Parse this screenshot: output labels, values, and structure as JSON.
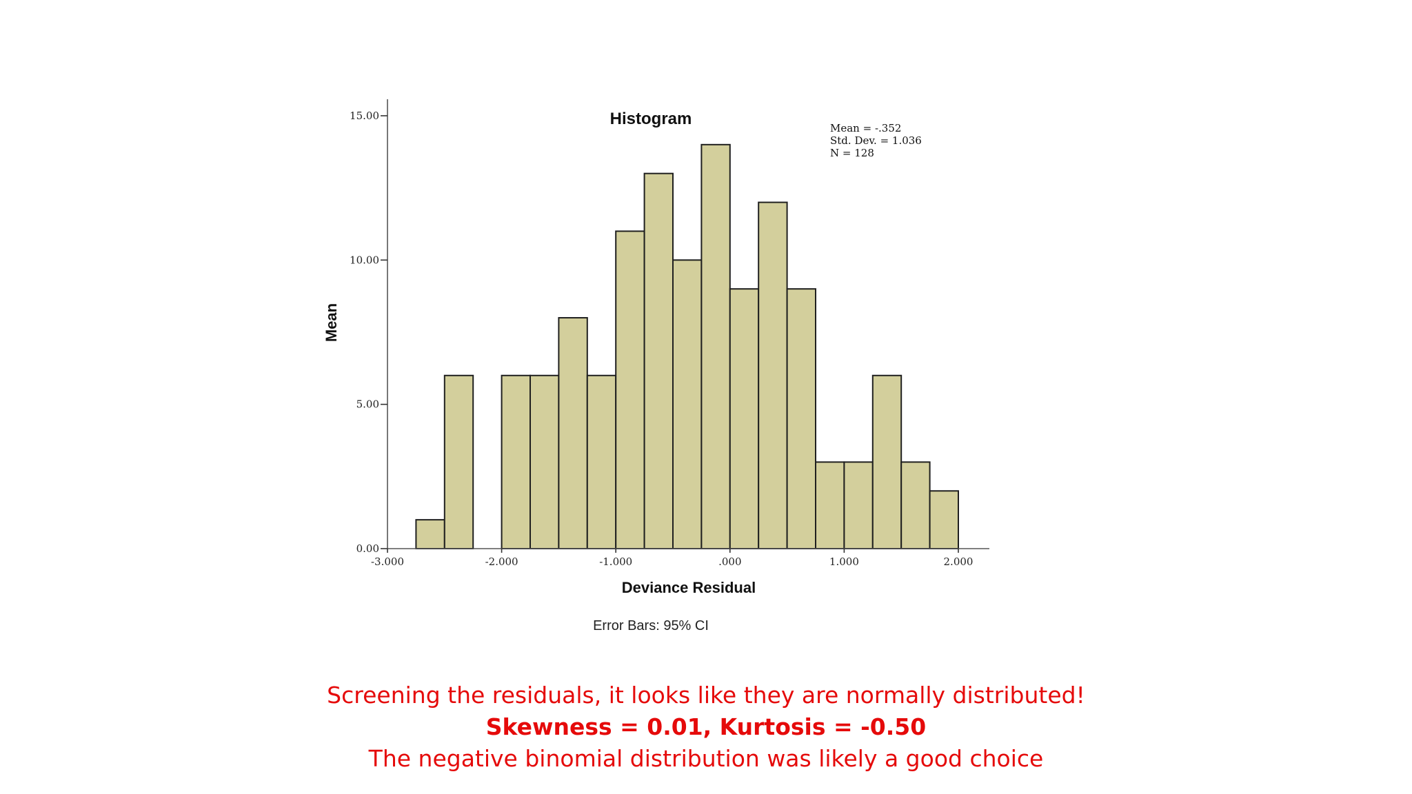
{
  "chart_data": {
    "type": "bar",
    "title": "Histogram",
    "xlabel": "Deviance Residual",
    "ylabel": "Mean",
    "xlim": [
      -3.0,
      2.0
    ],
    "ylim": [
      0,
      15.5
    ],
    "x_tick_labels": [
      {
        "value": -3.0,
        "label": "-3.000"
      },
      {
        "value": -2.0,
        "label": "-2.000"
      },
      {
        "value": -1.0,
        "label": "-1.000"
      },
      {
        "value": 0.0,
        "label": ".000"
      },
      {
        "value": 1.0,
        "label": "1.000"
      },
      {
        "value": 2.0,
        "label": "2.000"
      }
    ],
    "y_tick_labels": [
      {
        "value": 0,
        "label": "0.00"
      },
      {
        "value": 5,
        "label": "5.00"
      },
      {
        "value": 10,
        "label": "10.00"
      },
      {
        "value": 15,
        "label": "15.00"
      }
    ],
    "bin_width": 0.25,
    "bins": [
      {
        "x0": -2.75,
        "value": 1
      },
      {
        "x0": -2.5,
        "value": 6
      },
      {
        "x0": -2.0,
        "value": 6
      },
      {
        "x0": -1.75,
        "value": 6
      },
      {
        "x0": -1.5,
        "value": 8
      },
      {
        "x0": -1.25,
        "value": 6
      },
      {
        "x0": -1.0,
        "value": 11
      },
      {
        "x0": -0.75,
        "value": 13
      },
      {
        "x0": -0.5,
        "value": 10
      },
      {
        "x0": -0.25,
        "value": 14
      },
      {
        "x0": 0.0,
        "value": 9
      },
      {
        "x0": 0.25,
        "value": 12
      },
      {
        "x0": 0.5,
        "value": 9
      },
      {
        "x0": 0.75,
        "value": 3
      },
      {
        "x0": 1.0,
        "value": 3
      },
      {
        "x0": 1.25,
        "value": 6
      },
      {
        "x0": 1.5,
        "value": 3
      },
      {
        "x0": 1.75,
        "value": 2
      }
    ],
    "stats": [
      "Mean = -.352",
      "Std. Dev. = 1.036",
      "N = 128"
    ],
    "footnote": "Error Bars: 95% CI",
    "bar_color": "#d3cf9c",
    "legend_position": "top-right",
    "grid": false
  },
  "caption": {
    "line1": "Screening the residuals, it looks like they are normally distributed!",
    "line2": "Skewness = 0.01, Kurtosis = -0.50",
    "line3": "The negative binomial distribution was likely a good choice"
  },
  "colors": {
    "caption": "#e50a0a"
  }
}
